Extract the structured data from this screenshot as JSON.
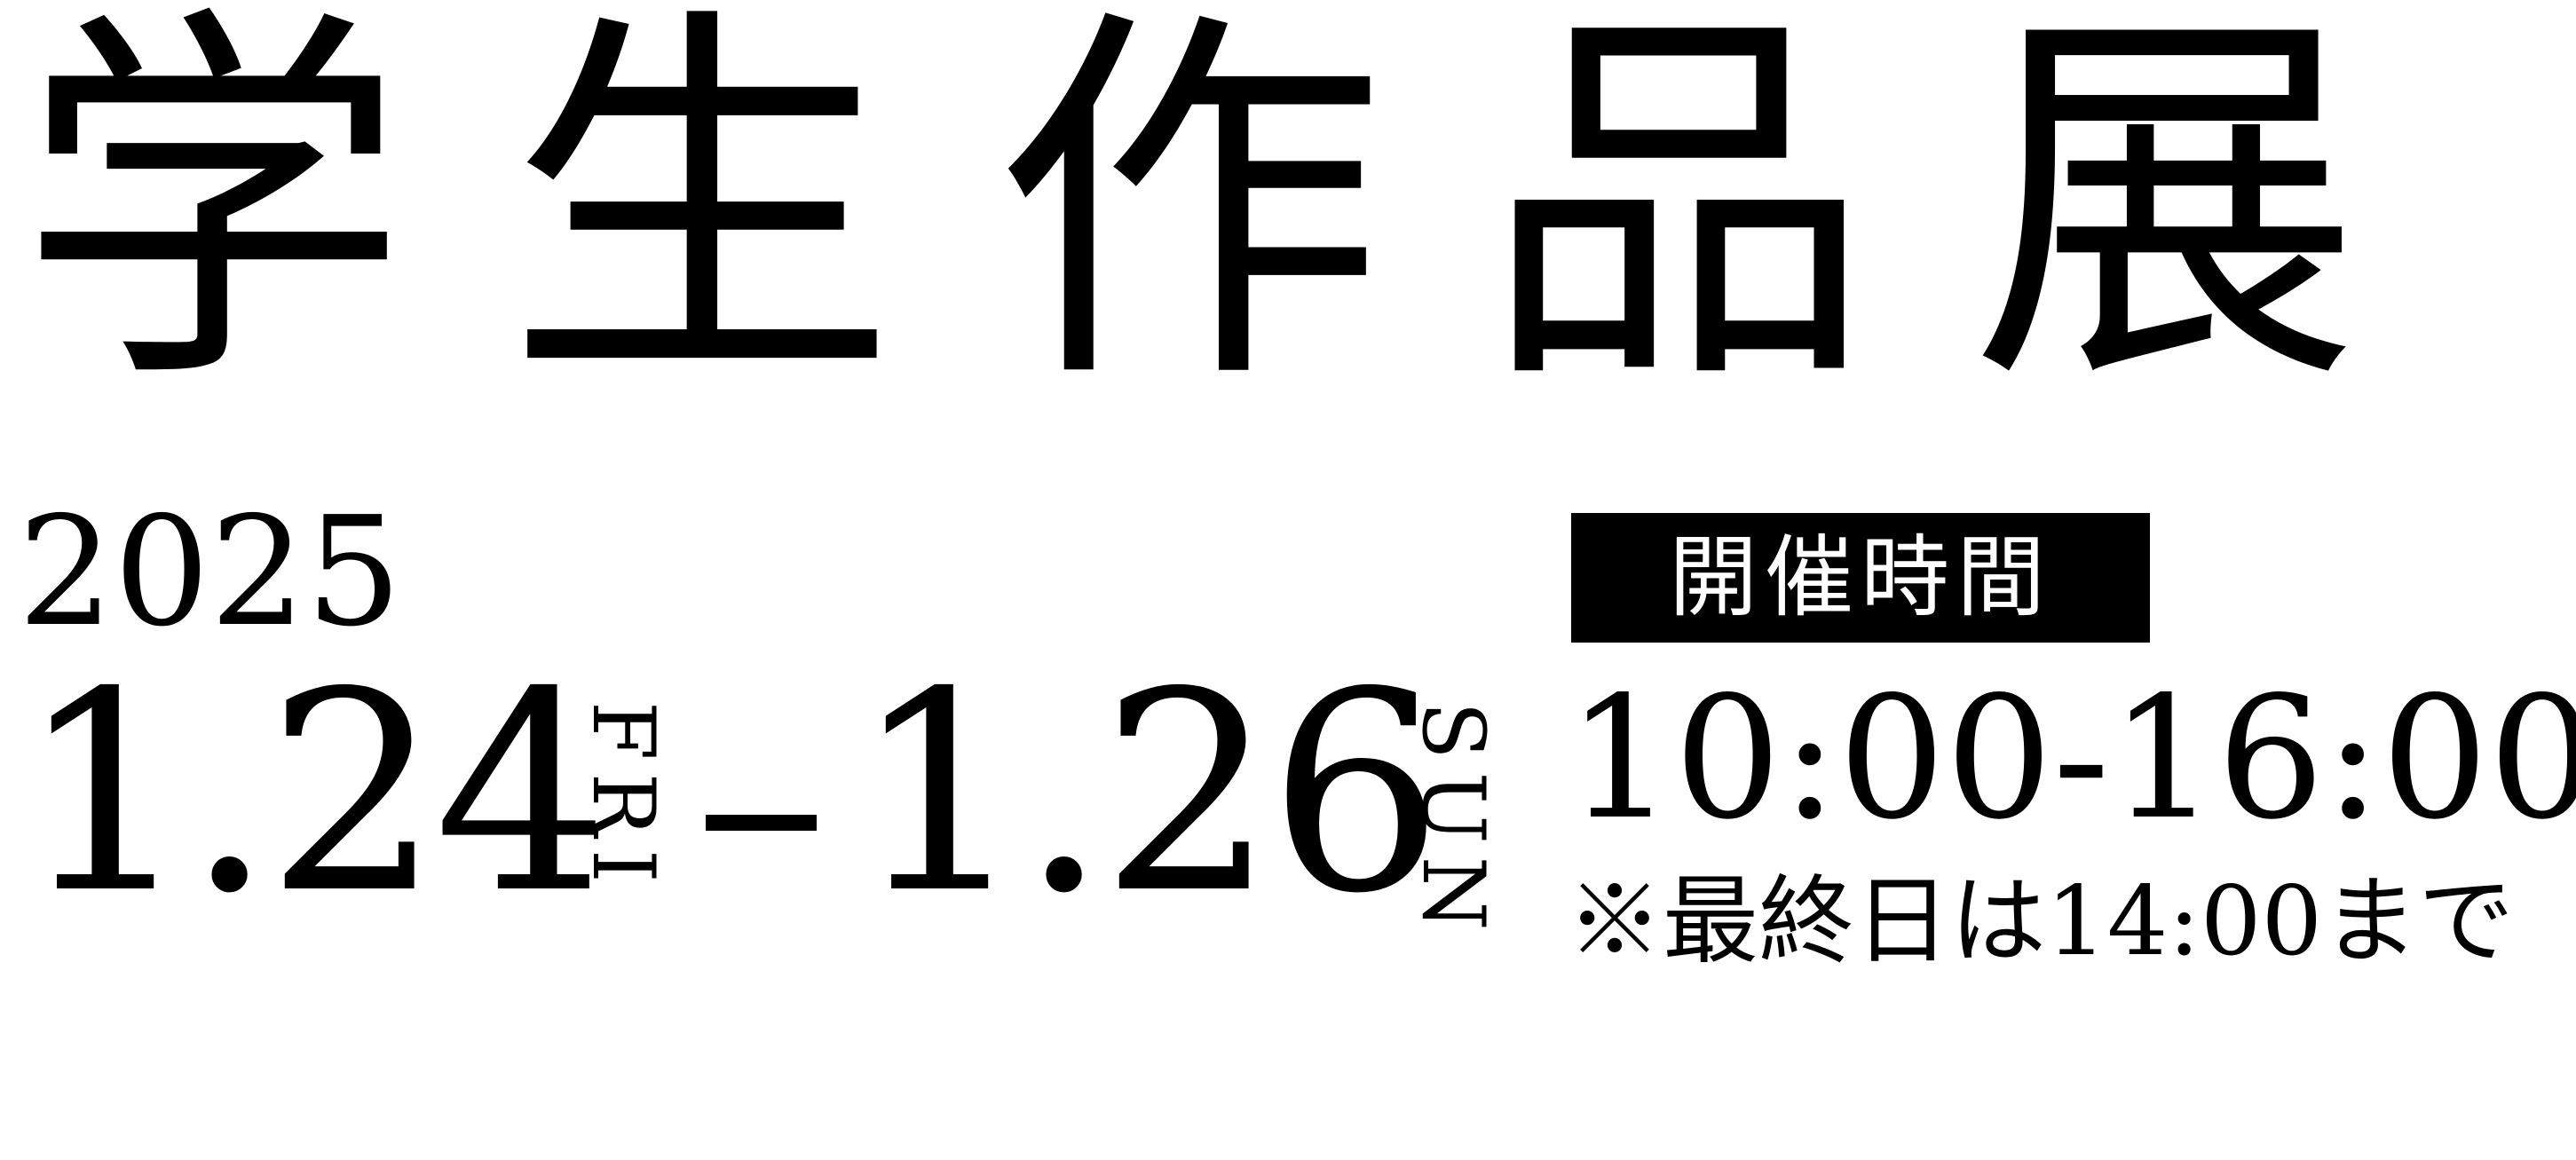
{
  "title": "学生作品展",
  "year": "2025",
  "date_start": "1.24",
  "weekday_start": "FRI",
  "date_end": "1.26",
  "weekday_end": "SUN",
  "hours_label": "開催時間",
  "hours": "10:00-16:00",
  "note": "※最終日は14:00まで"
}
